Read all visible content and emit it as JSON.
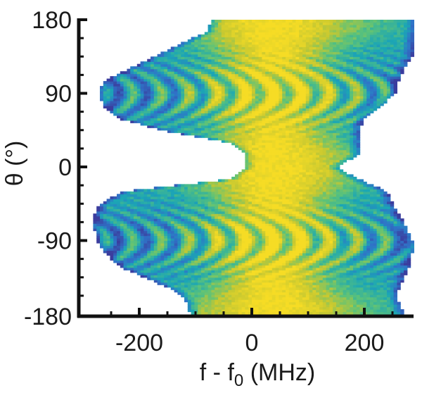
{
  "chart_data": {
    "type": "heatmap",
    "title": "",
    "xlabel": "f - f",
    "xlabel_subscript": "0",
    "xlabel_suffix": " (MHz)",
    "ylabel": "θ (°)",
    "xlim": [
      -300,
      290
    ],
    "ylim": [
      -180,
      180
    ],
    "x_ticks": [
      -200,
      0,
      200
    ],
    "x_tick_labels": [
      "-200",
      "0",
      "200"
    ],
    "x_minor_ticks": [
      -250,
      -150,
      -100,
      -50,
      50,
      100,
      150,
      250
    ],
    "y_ticks": [
      -180,
      -90,
      0,
      90,
      180
    ],
    "y_tick_labels": [
      "-180",
      "-90",
      "0",
      "90",
      "180"
    ],
    "grid": false,
    "colormap": [
      "#3b3d9e",
      "#2f74c8",
      "#1ba6b5",
      "#5bc27a",
      "#c6c831",
      "#f6dc25"
    ],
    "envelope": [
      {
        "theta": 180,
        "fmin": -70,
        "fmax": 290
      },
      {
        "theta": 165,
        "fmin": -80,
        "fmax": 290
      },
      {
        "theta": 150,
        "fmin": -130,
        "fmax": 285
      },
      {
        "theta": 135,
        "fmin": -175,
        "fmax": 285
      },
      {
        "theta": 120,
        "fmin": -220,
        "fmax": 270
      },
      {
        "theta": 105,
        "fmin": -265,
        "fmax": 260
      },
      {
        "theta": 90,
        "fmin": -270,
        "fmax": 255
      },
      {
        "theta": 75,
        "fmin": -265,
        "fmax": 230
      },
      {
        "theta": 60,
        "fmin": -240,
        "fmax": 200
      },
      {
        "theta": 45,
        "fmin": -160,
        "fmax": 190
      },
      {
        "theta": 30,
        "fmin": -40,
        "fmax": 190
      },
      {
        "theta": 15,
        "fmin": -10,
        "fmax": 190
      },
      {
        "theta": 0,
        "fmin": -10,
        "fmax": 150
      },
      {
        "theta": -15,
        "fmin": -40,
        "fmax": 190
      },
      {
        "theta": -30,
        "fmin": -230,
        "fmax": 240
      },
      {
        "theta": -45,
        "fmin": -270,
        "fmax": 250
      },
      {
        "theta": -60,
        "fmin": -280,
        "fmax": 265
      },
      {
        "theta": -75,
        "fmin": -280,
        "fmax": 275
      },
      {
        "theta": -90,
        "fmin": -275,
        "fmax": 285
      },
      {
        "theta": -105,
        "fmin": -260,
        "fmax": 285
      },
      {
        "theta": -120,
        "fmin": -240,
        "fmax": 280
      },
      {
        "theta": -135,
        "fmin": -190,
        "fmax": 270
      },
      {
        "theta": -150,
        "fmin": -140,
        "fmax": 260
      },
      {
        "theta": -165,
        "fmin": -115,
        "fmax": 260
      },
      {
        "theta": -180,
        "fmin": -110,
        "fmax": 270
      }
    ],
    "ridge_center_mhz": 40,
    "lobe_centers_deg": [
      90,
      -90
    ],
    "lobe_ring_spacing_mhz": 50
  }
}
